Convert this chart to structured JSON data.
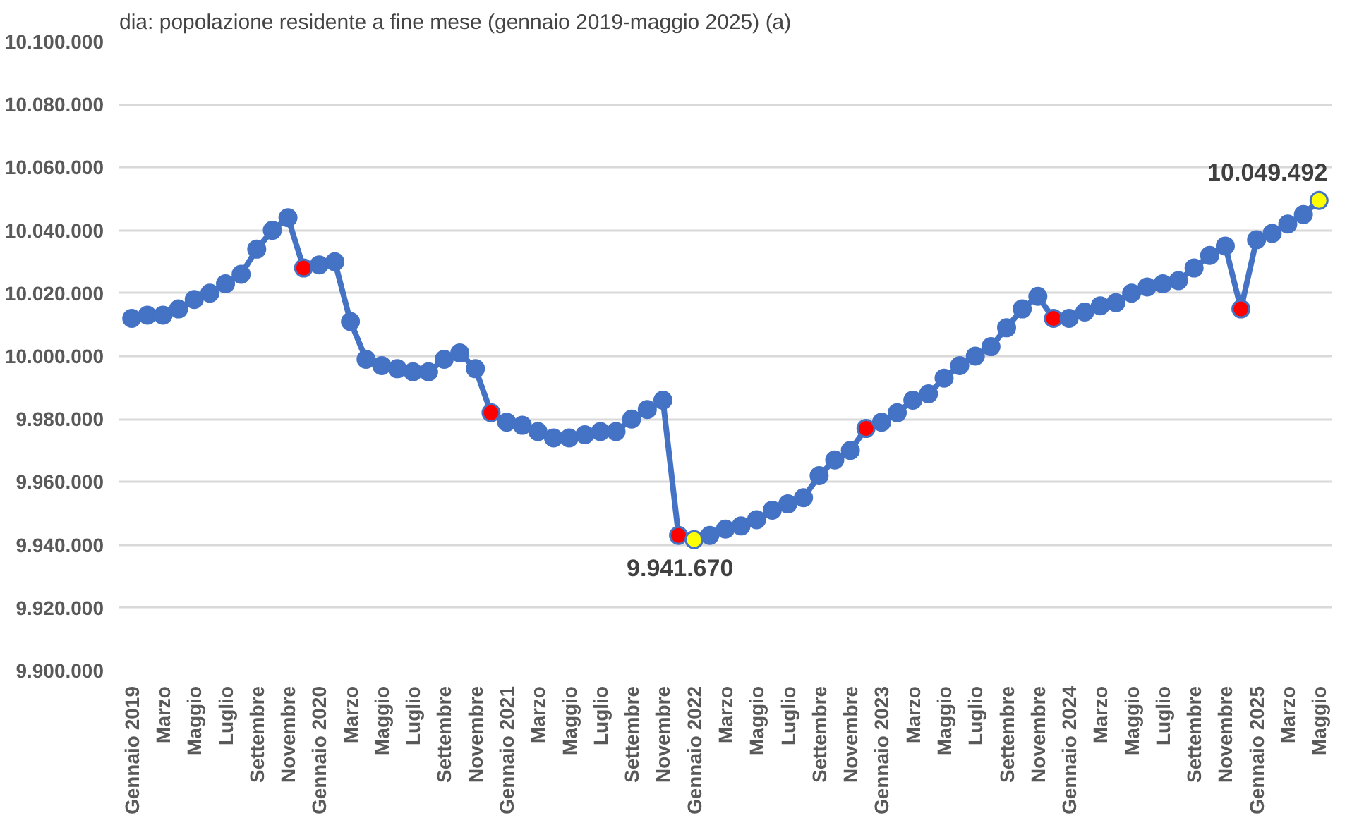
{
  "chart_data": {
    "type": "line",
    "title": "dia: popolazione residente a fine mese (gennaio 2019-maggio 2025) (a)",
    "categories": [
      "Gennaio 2019",
      null,
      "Marzo",
      null,
      "Maggio",
      null,
      "Luglio",
      null,
      "Settembre",
      null,
      "Novembre",
      null,
      "Gennaio 2020",
      null,
      "Marzo",
      null,
      "Maggio",
      null,
      "Luglio",
      null,
      "Settembre",
      null,
      "Novembre",
      null,
      "Gennaio 2021",
      null,
      "Marzo",
      null,
      "Maggio",
      null,
      "Luglio",
      null,
      "Settembre",
      null,
      "Novembre",
      null,
      "Gennaio 2022",
      null,
      "Marzo",
      null,
      "Maggio",
      null,
      "Luglio",
      null,
      "Settembre",
      null,
      "Novembre",
      null,
      "Gennaio 2023",
      null,
      "Marzo",
      null,
      "Maggio",
      null,
      "Luglio",
      null,
      "Settembre",
      null,
      "Novembre",
      null,
      "Gennaio 2024",
      null,
      "Marzo",
      null,
      "Maggio",
      null,
      "Luglio",
      null,
      "Settembre",
      null,
      "Novembre",
      null,
      "Gennaio 2025",
      null,
      "Marzo",
      null,
      "Maggio"
    ],
    "series": [
      {
        "color": "#4472c4",
        "values": [
          10012000,
          10013000,
          10013000,
          10015000,
          10018000,
          10020000,
          10023000,
          10026000,
          10034000,
          10040000,
          10044000,
          10028000,
          10029000,
          10030000,
          10011000,
          9999000,
          9997000,
          9996000,
          9995000,
          9995000,
          9999000,
          10001000,
          9996000,
          9982000,
          9979000,
          9978000,
          9976000,
          9974000,
          9974000,
          9975000,
          9976000,
          9976000,
          9980000,
          9983000,
          9986000,
          9943000,
          9941670,
          9943000,
          9945000,
          9946000,
          9948000,
          9951000,
          9953000,
          9955000,
          9962000,
          9967000,
          9970000,
          9977000,
          9979000,
          9982000,
          9986000,
          9988000,
          9993000,
          9997000,
          10000000,
          10003000,
          10009000,
          10015000,
          10019000,
          10012000,
          10012000,
          10014000,
          10016000,
          10017000,
          10020000,
          10022000,
          10023000,
          10024000,
          10028000,
          10032000,
          10035000,
          10015000,
          10037000,
          10039000,
          10042000,
          10045000,
          10049492
        ],
        "colors": [
          "#4472c4",
          "#4472c4",
          "#4472c4",
          "#4472c4",
          "#4472c4",
          "#4472c4",
          "#4472c4",
          "#4472c4",
          "#4472c4",
          "#4472c4",
          "#4472c4",
          "#ff0000",
          "#4472c4",
          "#4472c4",
          "#4472c4",
          "#4472c4",
          "#4472c4",
          "#4472c4",
          "#4472c4",
          "#4472c4",
          "#4472c4",
          "#4472c4",
          "#4472c4",
          "#ff0000",
          "#4472c4",
          "#4472c4",
          "#4472c4",
          "#4472c4",
          "#4472c4",
          "#4472c4",
          "#4472c4",
          "#4472c4",
          "#4472c4",
          "#4472c4",
          "#4472c4",
          "#ff0000",
          "#ffff00",
          "#4472c4",
          "#4472c4",
          "#4472c4",
          "#4472c4",
          "#4472c4",
          "#4472c4",
          "#4472c4",
          "#4472c4",
          "#4472c4",
          "#4472c4",
          "#ff0000",
          "#4472c4",
          "#4472c4",
          "#4472c4",
          "#4472c4",
          "#4472c4",
          "#4472c4",
          "#4472c4",
          "#4472c4",
          "#4472c4",
          "#4472c4",
          "#4472c4",
          "#ff0000",
          "#4472c4",
          "#4472c4",
          "#4472c4",
          "#4472c4",
          "#4472c4",
          "#4472c4",
          "#4472c4",
          "#4472c4",
          "#4472c4",
          "#4472c4",
          "#4472c4",
          "#ff0000",
          "#4472c4",
          "#4472c4",
          "#4472c4",
          "#4472c4",
          "#ffff00"
        ],
        "value_labels": [
          null,
          null,
          null,
          null,
          null,
          null,
          null,
          null,
          null,
          null,
          null,
          null,
          null,
          null,
          null,
          null,
          null,
          null,
          null,
          null,
          null,
          null,
          null,
          null,
          null,
          null,
          null,
          null,
          null,
          null,
          null,
          null,
          null,
          null,
          null,
          null,
          "9.941.670",
          null,
          null,
          null,
          null,
          null,
          null,
          null,
          null,
          null,
          null,
          null,
          null,
          null,
          null,
          null,
          null,
          null,
          null,
          null,
          null,
          null,
          null,
          null,
          null,
          null,
          null,
          null,
          null,
          null,
          null,
          null,
          null,
          null,
          null,
          null,
          null,
          null,
          null,
          null,
          "10.049.492"
        ]
      }
    ],
    "ylim": [
      9900000,
      10100000
    ],
    "yticks": [
      {
        "value": 9900000,
        "label": "9.900.000"
      },
      {
        "value": 9920000,
        "label": "9.920.000"
      },
      {
        "value": 9940000,
        "label": "9.940.000"
      },
      {
        "value": 9960000,
        "label": "9.960.000"
      },
      {
        "value": 9980000,
        "label": "9.980.000"
      },
      {
        "value": 10000000,
        "label": "10.000.000"
      },
      {
        "value": 10020000,
        "label": "10.020.000"
      },
      {
        "value": 10040000,
        "label": "10.040.000"
      },
      {
        "value": 10060000,
        "label": "10.060.000"
      },
      {
        "value": 10080000,
        "label": "10.080.000"
      },
      {
        "value": 10100000,
        "label": "10.100.000"
      }
    ],
    "grid": "y",
    "marker": "circle",
    "line_style": "solid"
  }
}
